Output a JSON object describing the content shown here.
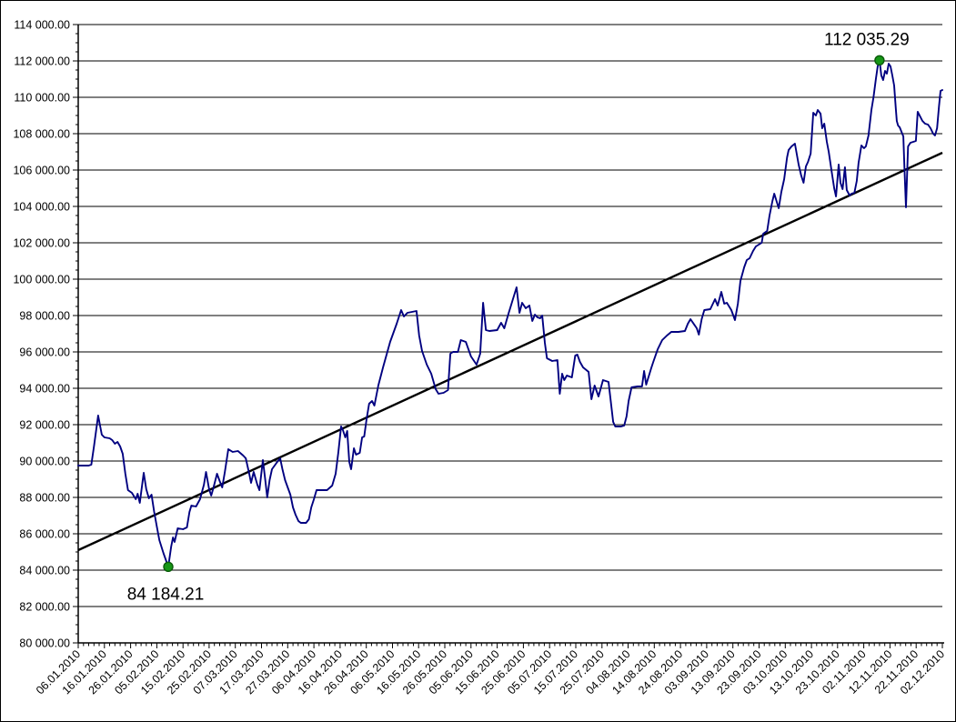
{
  "chart_data": {
    "type": "line",
    "title": "",
    "legend": "none",
    "grid": true,
    "colors": {
      "background": "#ffffff",
      "border": "#000000",
      "grid": "#000000",
      "axis": "#000000",
      "series_line": "#000080",
      "trend_line": "#000000",
      "marker_fill": "#169616",
      "marker_stroke": "#0a5a0a",
      "text": "#000000"
    },
    "y_axis": {
      "min": 80000,
      "max": 114000,
      "major_step": 2000,
      "minor_step": 500,
      "tick_labels": [
        "80 000.00",
        "82 000.00",
        "84 000.00",
        "86 000.00",
        "88 000.00",
        "90 000.00",
        "92 000.00",
        "94 000.00",
        "96 000.00",
        "98 000.00",
        "100 000.00",
        "102 000.00",
        "104 000.00",
        "106 000.00",
        "108 000.00",
        "110 000.00",
        "112 000.00",
        "114 000.00"
      ]
    },
    "x_axis": {
      "min_day": 0,
      "max_day": 330,
      "major_step_days": 10,
      "minor_step_days": 2,
      "tick_labels": [
        "06.01.2010",
        "16.01.2010",
        "26.01.2010",
        "05.02.2010",
        "15.02.2010",
        "25.02.2010",
        "07.03.2010",
        "17.03.2010",
        "27.03.2010",
        "06.04.2010",
        "16.04.2010",
        "26.04.2010",
        "06.05.2010",
        "16.05.2010",
        "26.05.2010",
        "05.06.2010",
        "15.06.2010",
        "25.06.2010",
        "05.07.2010",
        "15.07.2010",
        "25.07.2010",
        "04.08.2010",
        "14.08.2010",
        "24.08.2010",
        "03.09.2010",
        "13.09.2010",
        "23.09.2010",
        "03.10.2010",
        "13.10.2010",
        "23.10.2010",
        "02.11.2010",
        "12.11.2010",
        "22.11.2010",
        "02.12.2010"
      ]
    },
    "trendline": {
      "points": [
        [
          0,
          85100
        ],
        [
          330,
          106950
        ]
      ]
    },
    "markers": [
      {
        "day": 34.4,
        "value": 84184.21,
        "label": "84 184.21",
        "label_position": "below"
      },
      {
        "day": 306,
        "value": 112035.29,
        "label": "112 035.29",
        "label_position": "above"
      }
    ],
    "series": [
      {
        "name": "daily-values",
        "points": [
          [
            0,
            89750
          ],
          [
            4,
            89750
          ],
          [
            5,
            89800
          ],
          [
            6,
            90800
          ],
          [
            7.6,
            92500
          ],
          [
            9,
            91450
          ],
          [
            10,
            91300
          ],
          [
            12,
            91250
          ],
          [
            13,
            91150
          ],
          [
            14,
            90950
          ],
          [
            15,
            91050
          ],
          [
            16,
            90800
          ],
          [
            17,
            90400
          ],
          [
            18,
            89300
          ],
          [
            19,
            88400
          ],
          [
            20.5,
            88250
          ],
          [
            22,
            87900
          ],
          [
            22.7,
            88200
          ],
          [
            23.5,
            87700
          ],
          [
            25,
            89350
          ],
          [
            26,
            88450
          ],
          [
            27,
            87950
          ],
          [
            28,
            88150
          ],
          [
            29,
            87200
          ],
          [
            30,
            86400
          ],
          [
            31,
            85650
          ],
          [
            32.5,
            84950
          ],
          [
            34.4,
            84184.21
          ],
          [
            35.5,
            85300
          ],
          [
            36.2,
            85800
          ],
          [
            36.8,
            85550
          ],
          [
            38,
            86300
          ],
          [
            40,
            86250
          ],
          [
            41.5,
            86350
          ],
          [
            42.5,
            87200
          ],
          [
            43.2,
            87550
          ],
          [
            45,
            87500
          ],
          [
            46.5,
            87900
          ],
          [
            48,
            88700
          ],
          [
            48.8,
            89400
          ],
          [
            50,
            88450
          ],
          [
            50.8,
            88100
          ],
          [
            51.6,
            88500
          ],
          [
            53,
            89300
          ],
          [
            54,
            88900
          ],
          [
            55,
            88550
          ],
          [
            56,
            89400
          ],
          [
            57.3,
            90650
          ],
          [
            59,
            90500
          ],
          [
            61,
            90550
          ],
          [
            63,
            90300
          ],
          [
            64,
            90150
          ],
          [
            65.3,
            89300
          ],
          [
            66,
            88800
          ],
          [
            67,
            89400
          ],
          [
            68.4,
            88700
          ],
          [
            69.2,
            88400
          ],
          [
            70.5,
            90050
          ],
          [
            71.3,
            89100
          ],
          [
            72.2,
            88000
          ],
          [
            73.1,
            88950
          ],
          [
            74,
            89550
          ],
          [
            76,
            89950
          ],
          [
            77.1,
            90150
          ],
          [
            78,
            89550
          ],
          [
            79,
            88950
          ],
          [
            81,
            88150
          ],
          [
            82,
            87450
          ],
          [
            83,
            87050
          ],
          [
            84.1,
            86700
          ],
          [
            85,
            86600
          ],
          [
            87,
            86600
          ],
          [
            88.1,
            86800
          ],
          [
            89,
            87450
          ],
          [
            90,
            87900
          ],
          [
            91,
            88400
          ],
          [
            93,
            88400
          ],
          [
            95,
            88400
          ],
          [
            97,
            88650
          ],
          [
            98.3,
            89300
          ],
          [
            99.3,
            90450
          ],
          [
            100.4,
            91900
          ],
          [
            101.1,
            91700
          ],
          [
            102,
            91300
          ],
          [
            102.7,
            91650
          ],
          [
            103.5,
            89950
          ],
          [
            104.2,
            89550
          ],
          [
            105.3,
            90700
          ],
          [
            106.1,
            90350
          ],
          [
            107.5,
            90450
          ],
          [
            108.4,
            91300
          ],
          [
            109.2,
            91350
          ],
          [
            110.1,
            92300
          ],
          [
            111.1,
            93150
          ],
          [
            112.2,
            93300
          ],
          [
            113.1,
            93050
          ],
          [
            114.6,
            94150
          ],
          [
            116.4,
            95150
          ],
          [
            119.1,
            96550
          ],
          [
            121.6,
            97550
          ],
          [
            123.3,
            98300
          ],
          [
            124.4,
            97950
          ],
          [
            125.7,
            98150
          ],
          [
            129.2,
            98250
          ],
          [
            130.2,
            96900
          ],
          [
            131.3,
            96050
          ],
          [
            133.1,
            95300
          ],
          [
            134.8,
            94800
          ],
          [
            136.5,
            93950
          ],
          [
            137.6,
            93700
          ],
          [
            139.5,
            93750
          ],
          [
            141.2,
            93900
          ],
          [
            142.1,
            95900
          ],
          [
            143.1,
            96000
          ],
          [
            145,
            96000
          ],
          [
            146.1,
            96650
          ],
          [
            148,
            96550
          ],
          [
            150,
            95750
          ],
          [
            152.1,
            95300
          ],
          [
            153.5,
            95900
          ],
          [
            154.6,
            98700
          ],
          [
            155.7,
            97200
          ],
          [
            157,
            97150
          ],
          [
            160,
            97200
          ],
          [
            161.5,
            97600
          ],
          [
            162.7,
            97300
          ],
          [
            164.3,
            98100
          ],
          [
            166,
            98900
          ],
          [
            167.4,
            99550
          ],
          [
            168.5,
            98150
          ],
          [
            169.5,
            98700
          ],
          [
            170.9,
            98400
          ],
          [
            172.3,
            98550
          ],
          [
            173.4,
            97700
          ],
          [
            174.4,
            98050
          ],
          [
            175.4,
            97900
          ],
          [
            176.4,
            97850
          ],
          [
            177.2,
            98000
          ],
          [
            178.2,
            96500
          ],
          [
            179,
            95650
          ],
          [
            181,
            95500
          ],
          [
            183,
            95550
          ],
          [
            183.9,
            93700
          ],
          [
            184.8,
            94800
          ],
          [
            185.6,
            94450
          ],
          [
            186.6,
            94700
          ],
          [
            188.5,
            94600
          ],
          [
            189.8,
            95800
          ],
          [
            190.6,
            95850
          ],
          [
            191.6,
            95450
          ],
          [
            192.8,
            95150
          ],
          [
            194.9,
            94900
          ],
          [
            196,
            93400
          ],
          [
            197.2,
            94150
          ],
          [
            198.7,
            93550
          ],
          [
            200.4,
            94450
          ],
          [
            202.5,
            94350
          ],
          [
            204.3,
            92150
          ],
          [
            205.1,
            91900
          ],
          [
            207.3,
            91900
          ],
          [
            208.5,
            91950
          ],
          [
            209.4,
            92450
          ],
          [
            210.2,
            93300
          ],
          [
            211.3,
            94050
          ],
          [
            213.6,
            94100
          ],
          [
            215.3,
            94100
          ],
          [
            216.1,
            94950
          ],
          [
            216.9,
            94200
          ],
          [
            218.8,
            95100
          ],
          [
            219.6,
            95450
          ],
          [
            221.3,
            96150
          ],
          [
            223,
            96650
          ],
          [
            224.8,
            96900
          ],
          [
            226.5,
            97100
          ],
          [
            229.2,
            97100
          ],
          [
            231.7,
            97150
          ],
          [
            232.8,
            97550
          ],
          [
            233.8,
            97800
          ],
          [
            236.2,
            97300
          ],
          [
            237,
            96950
          ],
          [
            238.1,
            97800
          ],
          [
            239.1,
            98300
          ],
          [
            241.4,
            98350
          ],
          [
            243.2,
            98900
          ],
          [
            244.2,
            98550
          ],
          [
            245.6,
            99300
          ],
          [
            246.7,
            98650
          ],
          [
            247.7,
            98700
          ],
          [
            249.4,
            98300
          ],
          [
            250.8,
            97750
          ],
          [
            251.9,
            98650
          ],
          [
            252.9,
            99900
          ],
          [
            254.3,
            100650
          ],
          [
            255.3,
            101050
          ],
          [
            256.4,
            101150
          ],
          [
            257.7,
            101550
          ],
          [
            258.8,
            101800
          ],
          [
            261,
            102000
          ],
          [
            261.6,
            102500
          ],
          [
            263.1,
            102650
          ],
          [
            264,
            103500
          ],
          [
            265.1,
            104300
          ],
          [
            265.8,
            104700
          ],
          [
            267.5,
            103900
          ],
          [
            268.5,
            104800
          ],
          [
            269.6,
            105500
          ],
          [
            270.7,
            106700
          ],
          [
            271.3,
            107100
          ],
          [
            272.4,
            107300
          ],
          [
            273.7,
            107450
          ],
          [
            275.1,
            106300
          ],
          [
            276.1,
            105700
          ],
          [
            277,
            105300
          ],
          [
            277.9,
            106200
          ],
          [
            278.7,
            106450
          ],
          [
            279.7,
            106900
          ],
          [
            280.7,
            109150
          ],
          [
            281.7,
            109000
          ],
          [
            282.4,
            109300
          ],
          [
            283.5,
            109100
          ],
          [
            284.1,
            108300
          ],
          [
            284.9,
            108550
          ],
          [
            285.9,
            107550
          ],
          [
            286.6,
            107000
          ],
          [
            287.7,
            105950
          ],
          [
            288.7,
            105000
          ],
          [
            289.4,
            104550
          ],
          [
            290.4,
            106300
          ],
          [
            291.1,
            105300
          ],
          [
            291.9,
            104950
          ],
          [
            292.8,
            106150
          ],
          [
            293.5,
            104900
          ],
          [
            294.6,
            104600
          ],
          [
            295.3,
            104700
          ],
          [
            296.4,
            104750
          ],
          [
            297.3,
            105400
          ],
          [
            298,
            106400
          ],
          [
            299.1,
            107350
          ],
          [
            300.1,
            107200
          ],
          [
            300.8,
            107300
          ],
          [
            301.8,
            107900
          ],
          [
            302.9,
            109300
          ],
          [
            303.7,
            110000
          ],
          [
            304.6,
            111000
          ],
          [
            305.3,
            111700
          ],
          [
            306,
            112035.29
          ],
          [
            306.7,
            111200
          ],
          [
            307.4,
            110950
          ],
          [
            308.1,
            111450
          ],
          [
            308.8,
            111300
          ],
          [
            309.5,
            111850
          ],
          [
            310.2,
            111700
          ],
          [
            310.9,
            111200
          ],
          [
            311.6,
            110650
          ],
          [
            312.2,
            109400
          ],
          [
            312.6,
            108700
          ],
          [
            313.1,
            108450
          ],
          [
            313.7,
            108350
          ],
          [
            314.4,
            108100
          ],
          [
            315.1,
            107850
          ],
          [
            315.5,
            106150
          ],
          [
            316.1,
            103950
          ],
          [
            316.9,
            107300
          ],
          [
            317.8,
            107500
          ],
          [
            318.9,
            107550
          ],
          [
            319.9,
            107600
          ],
          [
            320.6,
            109200
          ],
          [
            321.3,
            109000
          ],
          [
            322.4,
            108700
          ],
          [
            323.4,
            108550
          ],
          [
            324.5,
            108500
          ],
          [
            325.5,
            108300
          ],
          [
            326.5,
            108000
          ],
          [
            327.2,
            107900
          ],
          [
            328,
            108300
          ],
          [
            328.7,
            109500
          ],
          [
            329.3,
            110350
          ],
          [
            330,
            110400
          ]
        ]
      }
    ]
  }
}
